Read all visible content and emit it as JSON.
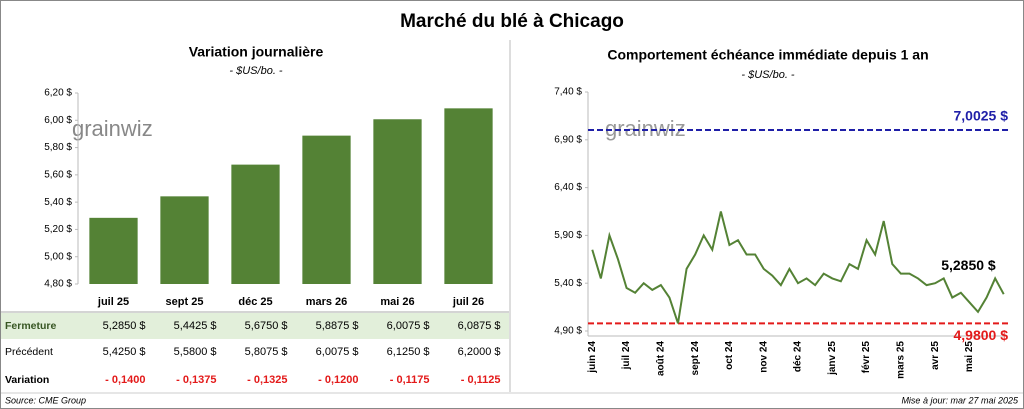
{
  "title": "Marché du blé à Chicago",
  "watermark": "grainwiz",
  "source": "Source: CME Group",
  "updated": "Mise à jour: mar 27 mai 2025",
  "chart_data": [
    {
      "type": "bar",
      "title": "Variation journalière",
      "subtitle": "- $US/bo. -",
      "color": "#548235",
      "categories": [
        "juil 25",
        "sept 25",
        "déc 25",
        "mars 26",
        "mai 26",
        "juil 26"
      ],
      "values": [
        5.285,
        5.4425,
        5.675,
        5.8875,
        6.0075,
        6.0875
      ],
      "ylim": [
        4.8,
        6.2
      ],
      "yticks": [
        {
          "value": 4.8,
          "label": "4,80 $"
        },
        {
          "value": 5.0,
          "label": "5,00 $"
        },
        {
          "value": 5.2,
          "label": "5,20 $"
        },
        {
          "value": 5.4,
          "label": "5,40 $"
        },
        {
          "value": 5.6,
          "label": "5,60 $"
        },
        {
          "value": 5.8,
          "label": "5,80 $"
        },
        {
          "value": 6.0,
          "label": "6,00 $"
        },
        {
          "value": 6.2,
          "label": "6,20 $"
        }
      ]
    },
    {
      "type": "line",
      "title": "Comportement échéance immédiate depuis 1 an",
      "subtitle": "- $US/bo. -",
      "color": "#548235",
      "categories": [
        "juin 24",
        null,
        null,
        null,
        "juil 24",
        null,
        null,
        null,
        "août 24",
        null,
        null,
        null,
        "sept 24",
        null,
        null,
        null,
        "oct 24",
        null,
        null,
        null,
        "nov 24",
        null,
        null,
        null,
        "déc 24",
        null,
        null,
        null,
        "janv 25",
        null,
        null,
        null,
        "févr 25",
        null,
        null,
        null,
        "mars 25",
        null,
        null,
        null,
        "avr 25",
        null,
        null,
        null,
        "mai 25",
        null,
        null,
        null,
        null
      ],
      "values": [
        5.75,
        5.45,
        5.9,
        5.65,
        5.35,
        5.3,
        5.4,
        5.33,
        5.38,
        5.25,
        4.98,
        5.55,
        5.7,
        5.9,
        5.75,
        6.15,
        5.8,
        5.85,
        5.7,
        5.7,
        5.55,
        5.48,
        5.38,
        5.55,
        5.4,
        5.45,
        5.38,
        5.5,
        5.45,
        5.42,
        5.6,
        5.55,
        5.85,
        5.7,
        6.05,
        5.6,
        5.5,
        5.5,
        5.45,
        5.38,
        5.4,
        5.45,
        5.25,
        5.3,
        5.2,
        5.1,
        5.25,
        5.45,
        5.285
      ],
      "ylim": [
        4.9,
        7.4
      ],
      "yticks": [
        {
          "value": 4.9,
          "label": "4,90 $"
        },
        {
          "value": 5.4,
          "label": "5,40 $"
        },
        {
          "value": 5.9,
          "label": "5,90 $"
        },
        {
          "value": 6.4,
          "label": "6,40 $"
        },
        {
          "value": 6.9,
          "label": "6,90 $"
        },
        {
          "value": 7.4,
          "label": "7,40 $"
        }
      ],
      "reference_lines": [
        {
          "value": 7.0025,
          "label": "7,0025 $",
          "color": "#1f1fa8"
        },
        {
          "value": 4.98,
          "label": "4,9800 $",
          "color": "#e31a1a"
        }
      ],
      "annotation": "5,2850 $"
    }
  ],
  "table": {
    "rows": [
      {
        "label": "Fermeture",
        "cells": [
          "5,2850 $",
          "5,4425 $",
          "5,6750 $",
          "5,8875 $",
          "6,0075 $",
          "6,0875 $"
        ]
      },
      {
        "label": "Précédent",
        "cells": [
          "5,4250 $",
          "5,5800 $",
          "5,8075 $",
          "6,0075 $",
          "6,1250 $",
          "6,2000 $"
        ]
      },
      {
        "label": "Variation",
        "cells": [
          "- 0,1400",
          "- 0,1375",
          "- 0,1325",
          "- 0,1200",
          "- 0,1175",
          "- 0,1125"
        ]
      }
    ]
  }
}
